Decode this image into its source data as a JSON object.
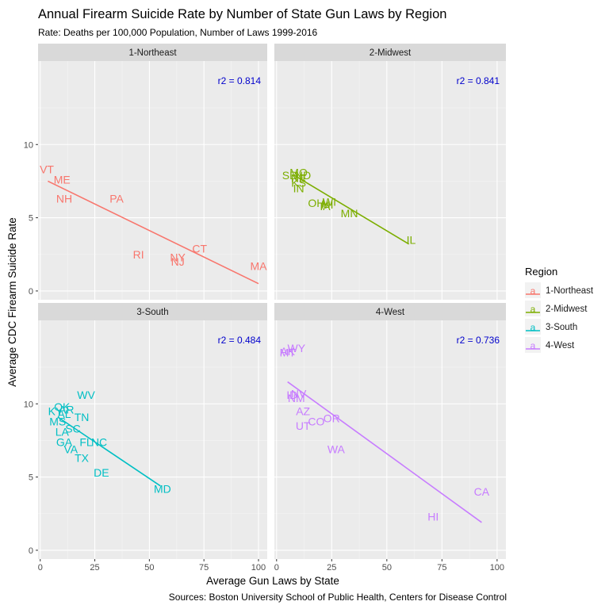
{
  "chart_data": {
    "type": "scatter",
    "title": "Annual Firearm Suicide Rate by Number of State Gun Laws by Region",
    "subtitle": "Rate: Deaths per 100,000 Population, Number of Laws 1999-2016",
    "xlabel": "Average Gun Laws by State",
    "ylabel": "Average CDC Firearm Suicide Rate",
    "caption": "Sources: Boston University School of Public Health, Centers for Disease Control",
    "legend_title": "Region",
    "legend_glyph": "a",
    "r2_prefix": "r2 = ",
    "xlim": [
      -1,
      104
    ],
    "x_ticks": [
      0,
      25,
      50,
      75,
      100
    ],
    "y_ticks": [
      0,
      5,
      10
    ],
    "panels": [
      {
        "name": "1-Northeast",
        "color": "#F8766D",
        "ylim": [
          -0.6,
          15.7
        ],
        "r2": "0.814",
        "fit": {
          "x1": 3.5,
          "y1": 7.5,
          "x2": 100,
          "y2": 0.5
        },
        "points": [
          {
            "label": "VT",
            "x": 3,
            "y": 8.3
          },
          {
            "label": "ME",
            "x": 10,
            "y": 7.6
          },
          {
            "label": "NH",
            "x": 11,
            "y": 6.3
          },
          {
            "label": "PA",
            "x": 35,
            "y": 6.3
          },
          {
            "label": "RI",
            "x": 45,
            "y": 2.5
          },
          {
            "label": "CT",
            "x": 73,
            "y": 2.9
          },
          {
            "label": "NY",
            "x": 63,
            "y": 2.3
          },
          {
            "label": "NJ",
            "x": 63,
            "y": 2.0
          },
          {
            "label": "MA",
            "x": 100,
            "y": 1.7
          }
        ]
      },
      {
        "name": "2-Midwest",
        "color": "#7CAE00",
        "ylim": [
          -0.6,
          15.7
        ],
        "r2": "0.841",
        "fit": {
          "x1": 8,
          "y1": 7.9,
          "x2": 60,
          "y2": 3.2
        },
        "points": [
          {
            "label": "SD",
            "x": 6,
            "y": 7.9
          },
          {
            "label": "MO",
            "x": 10,
            "y": 8.1
          },
          {
            "label": "ND",
            "x": 12,
            "y": 7.9
          },
          {
            "label": "KS",
            "x": 10,
            "y": 7.4
          },
          {
            "label": "NE",
            "x": 10,
            "y": 7.7
          },
          {
            "label": "IN",
            "x": 10,
            "y": 7.0
          },
          {
            "label": "OH",
            "x": 18,
            "y": 6.0
          },
          {
            "label": "WI",
            "x": 24,
            "y": 6.1
          },
          {
            "label": "MI",
            "x": 23,
            "y": 5.9
          },
          {
            "label": "IA",
            "x": 22,
            "y": 5.8
          },
          {
            "label": "IL",
            "x": 61,
            "y": 3.5
          },
          {
            "label": "MN",
            "x": 33,
            "y": 5.3
          }
        ]
      },
      {
        "name": "3-South",
        "color": "#00BFC4",
        "ylim": [
          -0.6,
          15.7
        ],
        "r2": "0.484",
        "fit": {
          "x1": 8,
          "y1": 9.1,
          "x2": 55,
          "y2": 4.4
        },
        "points": [
          {
            "label": "WV",
            "x": 21,
            "y": 10.6
          },
          {
            "label": "OK",
            "x": 10,
            "y": 9.8
          },
          {
            "label": "AR",
            "x": 12,
            "y": 9.6
          },
          {
            "label": "KY",
            "x": 7,
            "y": 9.5
          },
          {
            "label": "AL",
            "x": 11,
            "y": 9.3
          },
          {
            "label": "TN",
            "x": 19,
            "y": 9.1
          },
          {
            "label": "MS",
            "x": 8,
            "y": 8.8
          },
          {
            "label": "SC",
            "x": 15,
            "y": 8.3
          },
          {
            "label": "LA",
            "x": 10,
            "y": 8.1
          },
          {
            "label": "GA",
            "x": 11,
            "y": 7.4
          },
          {
            "label": "FL",
            "x": 21,
            "y": 7.4
          },
          {
            "label": "NC",
            "x": 27,
            "y": 7.4
          },
          {
            "label": "VA",
            "x": 14,
            "y": 6.9
          },
          {
            "label": "TX",
            "x": 19,
            "y": 6.3
          },
          {
            "label": "DE",
            "x": 28,
            "y": 5.3
          },
          {
            "label": "MD",
            "x": 56,
            "y": 4.2
          }
        ]
      },
      {
        "name": "4-West",
        "color": "#C77CFF",
        "ylim": [
          -0.6,
          15.7
        ],
        "r2": "0.736",
        "fit": {
          "x1": 5,
          "y1": 11.5,
          "x2": 93,
          "y2": 1.9
        },
        "points": [
          {
            "label": "AK",
            "x": 5,
            "y": 13.6
          },
          {
            "label": "MT",
            "x": 5,
            "y": 13.5
          },
          {
            "label": "WY",
            "x": 9,
            "y": 13.8
          },
          {
            "label": "ID",
            "x": 7,
            "y": 10.6
          },
          {
            "label": "NV",
            "x": 10,
            "y": 10.7
          },
          {
            "label": "NM",
            "x": 9,
            "y": 10.4
          },
          {
            "label": "AZ",
            "x": 12,
            "y": 9.5
          },
          {
            "label": "CO",
            "x": 18,
            "y": 8.8
          },
          {
            "label": "OR",
            "x": 25,
            "y": 9.0
          },
          {
            "label": "UT",
            "x": 12,
            "y": 8.5
          },
          {
            "label": "WA",
            "x": 27,
            "y": 6.9
          },
          {
            "label": "CA",
            "x": 93,
            "y": 4.0
          },
          {
            "label": "HI",
            "x": 71,
            "y": 2.3
          }
        ]
      }
    ]
  }
}
